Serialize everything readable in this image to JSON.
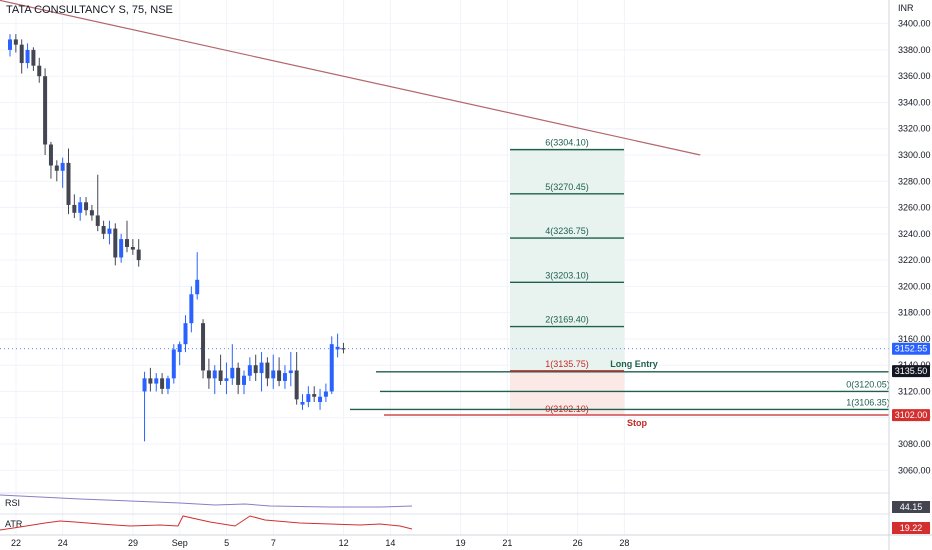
{
  "header": {
    "symbol_title": "TATA CONSULTANCY S, 75, NSE"
  },
  "colors": {
    "up": "#2962ff",
    "down": "#434651",
    "trend": "#b2676b",
    "fib_line": "#1e5f4e",
    "fib_fill": "#e8f3ef",
    "stop_line": "#c62828",
    "rsi": "#8e7cc3",
    "atr": "#d32f2f",
    "grid": "#f0f3fa"
  },
  "chart_data": {
    "type": "candlestick",
    "currency_label": "INR",
    "y_ticks": [
      "3400.00",
      "3380.00",
      "3360.00",
      "3340.00",
      "3320.00",
      "3300.00",
      "3280.00",
      "3260.00",
      "3240.00",
      "3220.00",
      "3200.00",
      "3180.00",
      "3160.00",
      "3140.00",
      "3120.00",
      "3100.00",
      "3080.00",
      "3060.00"
    ],
    "ylim": [
      3045,
      3418
    ],
    "x_ticks": [
      {
        "label": "22",
        "i": 0
      },
      {
        "label": "24",
        "i": 8
      },
      {
        "label": "29",
        "i": 20
      },
      {
        "label": "Sep",
        "i": 28
      },
      {
        "label": "5",
        "i": 36
      },
      {
        "label": "7",
        "i": 44
      },
      {
        "label": "12",
        "i": 56
      },
      {
        "label": "14",
        "i": 64
      },
      {
        "label": "19",
        "i": 76
      },
      {
        "label": "21",
        "i": 84
      },
      {
        "label": "26",
        "i": 96
      },
      {
        "label": "28",
        "i": 104
      }
    ],
    "candles": [
      {
        "o": 3380,
        "h": 3392,
        "l": 3375,
        "c": 3388
      },
      {
        "o": 3388,
        "h": 3392,
        "l": 3378,
        "c": 3384
      },
      {
        "o": 3384,
        "h": 3388,
        "l": 3362,
        "c": 3370
      },
      {
        "o": 3370,
        "h": 3385,
        "l": 3366,
        "c": 3380
      },
      {
        "o": 3380,
        "h": 3382,
        "l": 3364,
        "c": 3368
      },
      {
        "o": 3368,
        "h": 3374,
        "l": 3355,
        "c": 3360
      },
      {
        "o": 3360,
        "h": 3366,
        "l": 3300,
        "c": 3308
      },
      {
        "o": 3308,
        "h": 3310,
        "l": 3282,
        "c": 3292
      },
      {
        "o": 3292,
        "h": 3296,
        "l": 3280,
        "c": 3288
      },
      {
        "o": 3288,
        "h": 3298,
        "l": 3275,
        "c": 3294
      },
      {
        "o": 3294,
        "h": 3305,
        "l": 3255,
        "c": 3262
      },
      {
        "o": 3262,
        "h": 3270,
        "l": 3252,
        "c": 3256
      },
      {
        "o": 3256,
        "h": 3268,
        "l": 3250,
        "c": 3264
      },
      {
        "o": 3264,
        "h": 3268,
        "l": 3254,
        "c": 3258
      },
      {
        "o": 3258,
        "h": 3262,
        "l": 3250,
        "c": 3254
      },
      {
        "o": 3254,
        "h": 3285,
        "l": 3242,
        "c": 3246
      },
      {
        "o": 3246,
        "h": 3250,
        "l": 3236,
        "c": 3240
      },
      {
        "o": 3240,
        "h": 3250,
        "l": 3232,
        "c": 3244
      },
      {
        "o": 3244,
        "h": 3248,
        "l": 3216,
        "c": 3222
      },
      {
        "o": 3222,
        "h": 3240,
        "l": 3218,
        "c": 3236
      },
      {
        "o": 3236,
        "h": 3250,
        "l": 3226,
        "c": 3230
      },
      {
        "o": 3230,
        "h": 3236,
        "l": 3224,
        "c": 3228
      },
      {
        "o": 3228,
        "h": 3236,
        "l": 3215,
        "c": 3220
      },
      {
        "o": 3120,
        "h": 3135,
        "l": 3082,
        "c": 3130
      },
      {
        "o": 3130,
        "h": 3138,
        "l": 3120,
        "c": 3126
      },
      {
        "o": 3126,
        "h": 3134,
        "l": 3120,
        "c": 3130
      },
      {
        "o": 3130,
        "h": 3134,
        "l": 3118,
        "c": 3122
      },
      {
        "o": 3122,
        "h": 3132,
        "l": 3118,
        "c": 3130
      },
      {
        "o": 3130,
        "h": 3156,
        "l": 3126,
        "c": 3152
      },
      {
        "o": 3150,
        "h": 3158,
        "l": 3140,
        "c": 3156
      },
      {
        "o": 3156,
        "h": 3178,
        "l": 3150,
        "c": 3172
      },
      {
        "o": 3172,
        "h": 3200,
        "l": 3165,
        "c": 3194
      },
      {
        "o": 3194,
        "h": 3226,
        "l": 3190,
        "c": 3205
      },
      {
        "o": 3172,
        "h": 3175,
        "l": 3130,
        "c": 3136
      },
      {
        "o": 3136,
        "h": 3145,
        "l": 3122,
        "c": 3130
      },
      {
        "o": 3130,
        "h": 3140,
        "l": 3118,
        "c": 3136
      },
      {
        "o": 3136,
        "h": 3148,
        "l": 3125,
        "c": 3128
      },
      {
        "o": 3128,
        "h": 3142,
        "l": 3118,
        "c": 3130
      },
      {
        "o": 3130,
        "h": 3156,
        "l": 3125,
        "c": 3138
      },
      {
        "o": 3138,
        "h": 3142,
        "l": 3118,
        "c": 3125
      },
      {
        "o": 3125,
        "h": 3136,
        "l": 3118,
        "c": 3132
      },
      {
        "o": 3132,
        "h": 3146,
        "l": 3128,
        "c": 3140
      },
      {
        "o": 3140,
        "h": 3148,
        "l": 3128,
        "c": 3134
      },
      {
        "o": 3134,
        "h": 3150,
        "l": 3120,
        "c": 3142
      },
      {
        "o": 3142,
        "h": 3146,
        "l": 3124,
        "c": 3130
      },
      {
        "o": 3130,
        "h": 3148,
        "l": 3122,
        "c": 3136
      },
      {
        "o": 3136,
        "h": 3146,
        "l": 3124,
        "c": 3128
      },
      {
        "o": 3128,
        "h": 3140,
        "l": 3122,
        "c": 3134
      },
      {
        "o": 3134,
        "h": 3150,
        "l": 3124,
        "c": 3136
      },
      {
        "o": 3136,
        "h": 3150,
        "l": 3110,
        "c": 3114
      },
      {
        "o": 3110,
        "h": 3118,
        "l": 3106,
        "c": 3112
      },
      {
        "o": 3112,
        "h": 3124,
        "l": 3108,
        "c": 3118
      },
      {
        "o": 3118,
        "h": 3124,
        "l": 3112,
        "c": 3116
      },
      {
        "o": 3112,
        "h": 3122,
        "l": 3106,
        "c": 3116
      },
      {
        "o": 3116,
        "h": 3126,
        "l": 3112,
        "c": 3120
      },
      {
        "o": 3120,
        "h": 3162,
        "l": 3118,
        "c": 3156
      },
      {
        "o": 3152,
        "h": 3164,
        "l": 3146,
        "c": 3154
      },
      {
        "o": 3153,
        "h": 3157,
        "l": 3149,
        "c": 3152
      }
    ],
    "trendline": {
      "i1": -2,
      "v1": 3418,
      "i2": 118,
      "v2": 3300
    },
    "fib": {
      "levels": [
        {
          "label": "6(3304.10)",
          "value": 3304.1
        },
        {
          "label": "5(3270.45)",
          "value": 3270.45
        },
        {
          "label": "4(3236.75)",
          "value": 3236.75
        },
        {
          "label": "3(3203.10)",
          "value": 3203.1
        },
        {
          "label": "2(3169.40)",
          "value": 3169.4
        }
      ],
      "entry": {
        "label": "1(3135.75)",
        "value": 3135.75
      },
      "stop": {
        "label": "0(3102.10)",
        "value": 3102.1
      }
    },
    "long_entry_label": "Long Entry",
    "stop_label": "Stop",
    "right_levels": [
      {
        "label": "0(3120.05)",
        "value": 3120.05
      },
      {
        "label": "1(3106.35)",
        "value": 3106.35
      }
    ],
    "price_tags": [
      {
        "label": "3152.55",
        "value": 3152.55,
        "bg": "#2962ff"
      },
      {
        "label": "3135.50",
        "value": 3135.5,
        "bg": "#131722"
      },
      {
        "label": "3102.00",
        "value": 3102.0,
        "bg": "#d32f2f"
      }
    ],
    "indicators": {
      "rsi": {
        "name": "RSI",
        "value": "44.15"
      },
      "atr": {
        "name": "ATR",
        "value": "19.22"
      }
    }
  }
}
